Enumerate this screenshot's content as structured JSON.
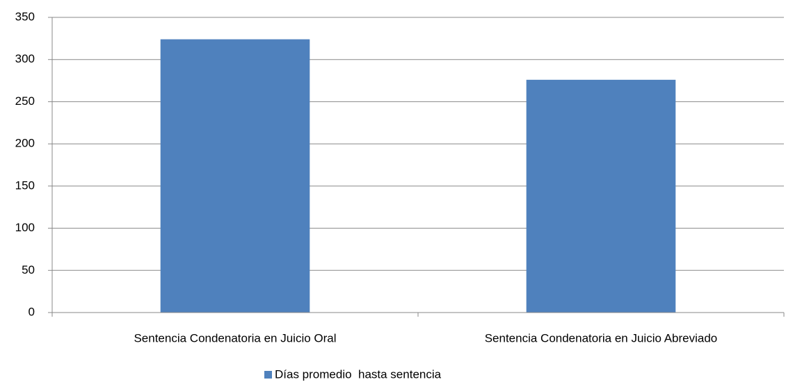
{
  "chart_data": {
    "type": "bar",
    "categories": [
      "Sentencia Condenatoria en Juicio Oral",
      "Sentencia Condenatoria en Juicio Abreviado"
    ],
    "series": [
      {
        "name": "Días promedio  hasta sentencia",
        "color": "#4f81bd",
        "values": [
          324,
          276
        ]
      }
    ],
    "ylim": [
      0,
      350
    ],
    "yticks": [
      0,
      50,
      100,
      150,
      200,
      250,
      300,
      350
    ],
    "grid": true,
    "legend": "bottom"
  }
}
